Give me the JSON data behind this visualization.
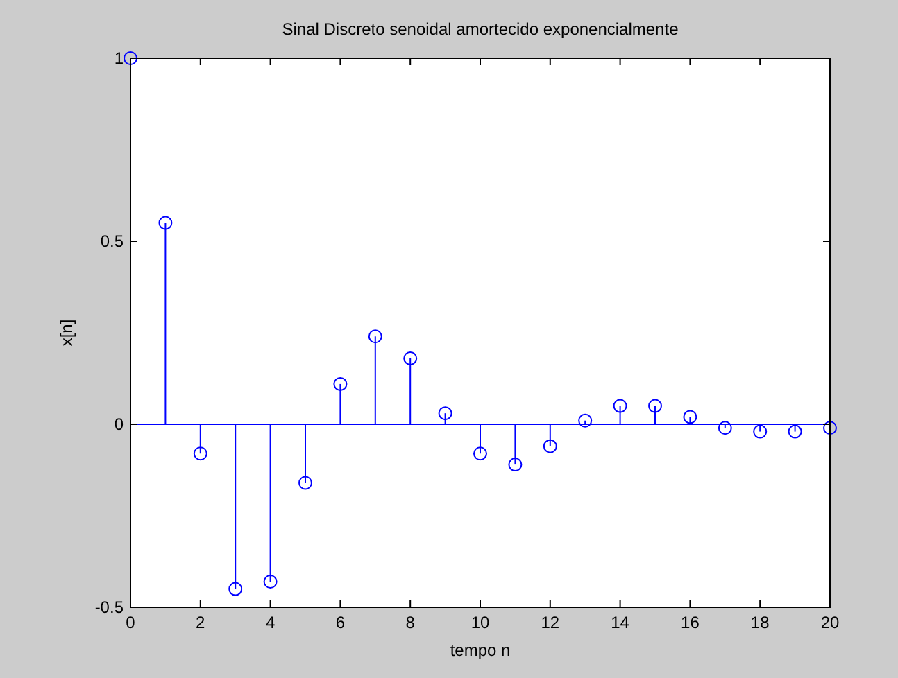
{
  "chart_data": {
    "type": "lollipop",
    "title": "Sinal Discreto senoidal amortecido exponencialmente",
    "xlabel": "tempo n",
    "ylabel": "x[n]",
    "x": [
      0,
      1,
      2,
      3,
      4,
      5,
      6,
      7,
      8,
      9,
      10,
      11,
      12,
      13,
      14,
      15,
      16,
      17,
      18,
      19,
      20
    ],
    "series": [
      {
        "color": "#0000ff",
        "values": [
          1,
          0.55,
          -0.08,
          -0.45,
          -0.43,
          -0.16,
          0.11,
          0.24,
          0.18,
          0.03,
          -0.08,
          -0.11,
          -0.06,
          0.01,
          0.05,
          0.05,
          0.02,
          -0.01,
          -0.02,
          -0.02,
          -0.01
        ]
      }
    ],
    "xlim": [
      0,
      20
    ],
    "xticks": [
      0,
      2,
      4,
      6,
      8,
      10,
      12,
      14,
      16,
      18,
      20
    ],
    "ylim": [
      -0.5,
      1
    ],
    "yticks": [
      -0.5,
      0,
      0.5,
      1
    ],
    "ref_lines": [
      {
        "axis": "y",
        "value": 0,
        "color": "#0000ff"
      }
    ],
    "marker": "circle"
  }
}
